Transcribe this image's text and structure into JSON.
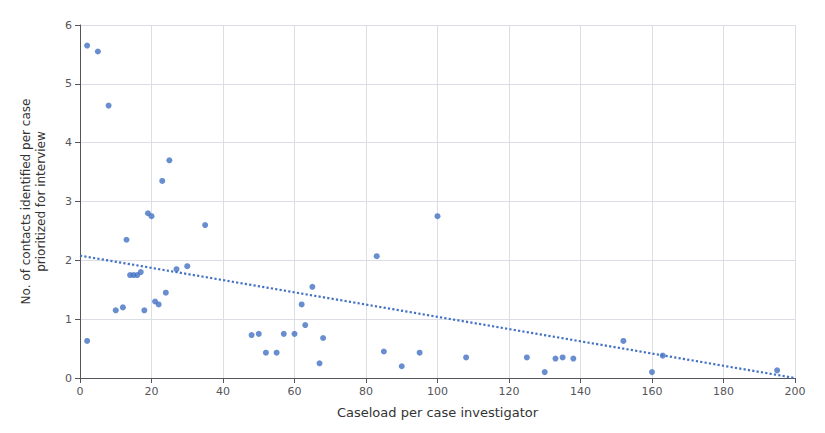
{
  "chart_data": {
    "type": "scatter",
    "xlabel": "Caseload per case investigator",
    "ylabel": "No. of contacts identified per case\nprioritized for interview",
    "series": [
      {
        "type": "scatter",
        "marker": "circle",
        "color": "#4472C4",
        "x": [
          2,
          5,
          8,
          10,
          12,
          13,
          14,
          15,
          16,
          17,
          18,
          19,
          20,
          21,
          22,
          23,
          24,
          25,
          27,
          30,
          35,
          48,
          50,
          52,
          55,
          57,
          60,
          62,
          63,
          65,
          67,
          68,
          83,
          85,
          90,
          95,
          100,
          108,
          125,
          130,
          133,
          135,
          138,
          152,
          160,
          163,
          195
        ],
        "values": [
          0.63,
          5.55,
          4.63,
          1.15,
          1.2,
          2.35,
          1.75,
          1.75,
          1.75,
          1.8,
          1.15,
          2.8,
          2.75,
          1.3,
          1.25,
          3.35,
          1.45,
          3.7,
          1.85,
          1.9,
          2.6,
          0.73,
          0.75,
          0.43,
          0.43,
          0.75,
          0.75,
          1.25,
          0.9,
          1.55,
          0.25,
          0.68,
          2.07,
          0.45,
          0.2,
          0.43,
          2.75,
          0.35,
          0.35,
          0.1,
          0.33,
          0.35,
          0.33,
          0.63,
          0.1,
          0.38,
          0.13
        ]
      },
      {
        "type": "scatter",
        "marker": "circle",
        "color": "#4472C4",
        "x": [
          2
        ],
        "values": [
          5.65
        ]
      },
      {
        "type": "line",
        "line_style": "dotted",
        "color": "#4472C4",
        "x": [
          0,
          200
        ],
        "values": [
          2.08,
          0
        ]
      }
    ],
    "xlim": [
      0,
      200
    ],
    "ylim": [
      0,
      6
    ],
    "xticks": [
      0,
      20,
      40,
      60,
      80,
      100,
      120,
      140,
      160,
      180,
      200
    ],
    "yticks": [
      0,
      1,
      2,
      3,
      4,
      5,
      6
    ],
    "grid": true
  }
}
